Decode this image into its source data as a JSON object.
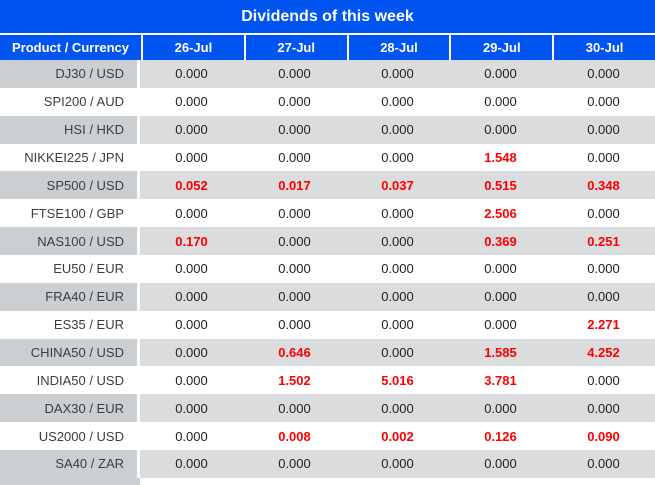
{
  "title": "Dividends of this week",
  "header": {
    "product_label": "Product / Currency",
    "date_columns": [
      "26-Jul",
      "27-Jul",
      "28-Jul",
      "29-Jul",
      "30-Jul"
    ]
  },
  "rows": [
    {
      "product": "DJ30 / USD",
      "values": [
        "0.000",
        "0.000",
        "0.000",
        "0.000",
        "0.000"
      ]
    },
    {
      "product": "SPI200 / AUD",
      "values": [
        "0.000",
        "0.000",
        "0.000",
        "0.000",
        "0.000"
      ]
    },
    {
      "product": "HSI / HKD",
      "values": [
        "0.000",
        "0.000",
        "0.000",
        "0.000",
        "0.000"
      ]
    },
    {
      "product": "NIKKEI225 / JPN",
      "values": [
        "0.000",
        "0.000",
        "0.000",
        "1.548",
        "0.000"
      ]
    },
    {
      "product": "SP500 / USD",
      "values": [
        "0.052",
        "0.017",
        "0.037",
        "0.515",
        "0.348"
      ]
    },
    {
      "product": "FTSE100 / GBP",
      "values": [
        "0.000",
        "0.000",
        "0.000",
        "2.506",
        "0.000"
      ]
    },
    {
      "product": "NAS100 / USD",
      "values": [
        "0.170",
        "0.000",
        "0.000",
        "0.369",
        "0.251"
      ]
    },
    {
      "product": "EU50 / EUR",
      "values": [
        "0.000",
        "0.000",
        "0.000",
        "0.000",
        "0.000"
      ]
    },
    {
      "product": "FRA40 / EUR",
      "values": [
        "0.000",
        "0.000",
        "0.000",
        "0.000",
        "0.000"
      ]
    },
    {
      "product": "ES35 / EUR",
      "values": [
        "0.000",
        "0.000",
        "0.000",
        "0.000",
        "2.271"
      ]
    },
    {
      "product": "CHINA50 / USD",
      "values": [
        "0.000",
        "0.646",
        "0.000",
        "1.585",
        "4.252"
      ]
    },
    {
      "product": "INDIA50 / USD",
      "values": [
        "0.000",
        "1.502",
        "5.016",
        "3.781",
        "0.000"
      ]
    },
    {
      "product": "DAX30 / EUR",
      "values": [
        "0.000",
        "0.000",
        "0.000",
        "0.000",
        "0.000"
      ]
    },
    {
      "product": "US2000 / USD",
      "values": [
        "0.000",
        "0.008",
        "0.002",
        "0.126",
        "0.090"
      ]
    },
    {
      "product": "SA40 / ZAR",
      "values": [
        "0.000",
        "0.000",
        "0.000",
        "0.000",
        "0.000"
      ]
    }
  ],
  "colors": {
    "header_blue": "#0055f0",
    "highlight_red": "#ff0000",
    "row_gray": "#dadcdd",
    "product_column_gray": "#cbcfd1",
    "divider_white": "#ffffff"
  }
}
